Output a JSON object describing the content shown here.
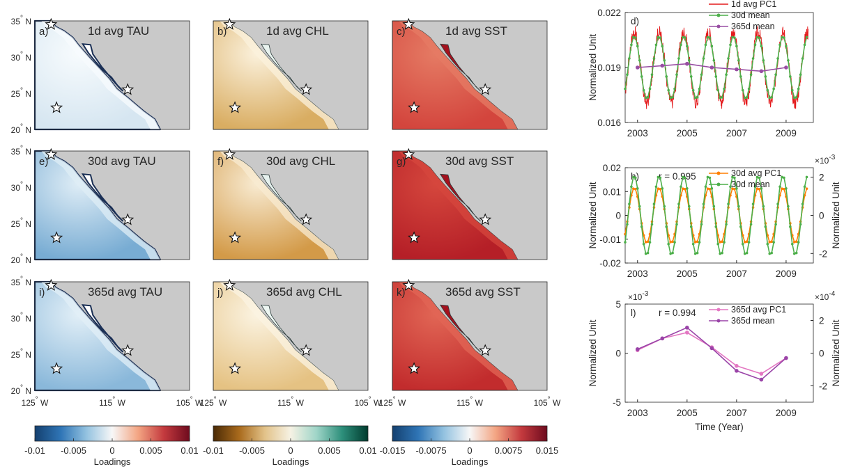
{
  "maps": {
    "lat_ticks": [
      "35° N",
      "30° N",
      "25° N",
      "20° N"
    ],
    "lon_ticks": [
      "125° W",
      "115° W",
      "105° W"
    ],
    "panels": [
      {
        "letter": "a)",
        "title": "1d avg TAU",
        "variable": "TAU",
        "offshore": "#d6e6f1",
        "coast": "#f7fbfd",
        "baja": "#ffffff"
      },
      {
        "letter": "b)",
        "title": "1d avg CHL",
        "variable": "CHL",
        "offshore": "#d9ad62",
        "coast": "#fbf1dc",
        "baja": "#e9f3ef"
      },
      {
        "letter": "c)",
        "title": "1d avg SST",
        "variable": "SST",
        "offshore": "#d3453d",
        "coast": "#e57b64",
        "baja": "#a3121e"
      },
      {
        "letter": "e)",
        "title": "30d avg TAU",
        "variable": "TAU",
        "offshore": "#78acd3",
        "coast": "#dfedf6",
        "baja": "#ffffff"
      },
      {
        "letter": "f)",
        "title": "30d avg CHL",
        "variable": "CHL",
        "offshore": "#d39a48",
        "coast": "#f8ebd2",
        "baja": "#e6f1ee"
      },
      {
        "letter": "g)",
        "title": "30d avg SST",
        "variable": "SST",
        "offshore": "#b51f27",
        "coast": "#d5473d",
        "baja": "#a3121e"
      },
      {
        "letter": "i)",
        "title": "365d avg TAU",
        "variable": "TAU",
        "offshore": "#8ab8da",
        "coast": "#e2eff7",
        "baja": "#ffffff"
      },
      {
        "letter": "j)",
        "title": "365d avg CHL",
        "variable": "CHL",
        "offshore": "#e5c283",
        "coast": "#fbf3e1",
        "baja": "#edf6f2"
      },
      {
        "letter": "k)",
        "title": "365d avg SST",
        "variable": "SST",
        "offshore": "#c22c2d",
        "coast": "#e16655",
        "baja": "#a3121e"
      }
    ],
    "land_color": "#c9c9c9",
    "star_locations": [
      "34.5° N 122.9° W",
      "23° N 122.2° W",
      "25.5° N 113° W"
    ]
  },
  "colorbars": [
    {
      "label": "Loadings",
      "ticks": [
        "-0.01",
        "-0.005",
        "0",
        "0.005",
        "0.01"
      ],
      "colors": [
        "#14406f",
        "#2f75b6",
        "#93c2e0",
        "#f7f7f7",
        "#f3a583",
        "#c43a3e",
        "#6e0b1e"
      ]
    },
    {
      "label": "Loadings",
      "ticks": [
        "-0.01",
        "-0.005",
        "0",
        "0.005",
        "0.01"
      ],
      "colors": [
        "#4a2a06",
        "#a96a1c",
        "#e2c289",
        "#f6f2e4",
        "#9fd5c8",
        "#2d8f7b",
        "#003b2e"
      ]
    },
    {
      "label": "Loadings",
      "ticks": [
        "-0.015",
        "-0.0075",
        "0",
        "0.0075",
        "0.015"
      ],
      "colors": [
        "#14406f",
        "#2f75b6",
        "#93c2e0",
        "#f7f7f7",
        "#f3a583",
        "#c43a3e",
        "#6e0b1e"
      ]
    }
  ],
  "colors": {
    "red": "#e41a1c",
    "green": "#4daf4a",
    "purple": "#984ea3",
    "orange": "#ff7f00",
    "pink": "#e377c2",
    "dpurple": "#9a44a8"
  },
  "chart_data": [
    {
      "type": "line",
      "letter": "d)",
      "xlim": [
        2002.5,
        2010.1
      ],
      "ylim": [
        0.016,
        0.022
      ],
      "yticks": [
        "0.022",
        "0.019",
        "0.016"
      ],
      "xticks": [
        "2003",
        "2005",
        "2007",
        "2009"
      ],
      "ylabel": "Normalized Unit",
      "legend": "top-right",
      "series": [
        {
          "name": "1d avg PC1",
          "color": "#e41a1c",
          "period": 1,
          "mean": 0.019,
          "amp": 0.0019,
          "noise": 0.0005,
          "phase": 0.62
        },
        {
          "name": "30d mean",
          "color": "#4daf4a",
          "period": 1,
          "mean": 0.019,
          "amp": 0.0017,
          "noise": 0.0,
          "phase": 0.62
        },
        {
          "name": "365d mean",
          "x": [
            2003,
            2004,
            2005,
            2006,
            2007,
            2008,
            2009
          ],
          "y": [
            0.019,
            0.0191,
            0.0192,
            0.019,
            0.0189,
            0.0188,
            0.019
          ]
        }
      ]
    },
    {
      "type": "line",
      "letter": "h)",
      "annotation": "r = 0.995",
      "xlim": [
        2002.5,
        2010.1
      ],
      "ylim": [
        -0.02,
        0.02
      ],
      "yticks": [
        "0.02",
        "0.01",
        "0",
        "-0.01",
        "-0.02"
      ],
      "y2lim": [
        -2.5,
        2.5
      ],
      "y2ticks": [
        "2",
        "0",
        "-2"
      ],
      "y2exponent": "×10",
      "y2exp_power": "-3",
      "xticks": [
        "2003",
        "2005",
        "2007",
        "2009"
      ],
      "ylabel": "Normalized Unit",
      "y2label": "Normalized Unit",
      "legend": "top-right",
      "series": [
        {
          "name": "30d avg PC1",
          "color": "#ff7f00",
          "amp": 0.0115,
          "phase": 0.62
        },
        {
          "name": "30d mean",
          "color": "#4daf4a",
          "amp": 0.0165,
          "phase": 0.62
        }
      ]
    },
    {
      "type": "line",
      "letter": "l)",
      "annotation": "r = 0.994",
      "xlim": [
        2002.5,
        2010.1
      ],
      "ylim": [
        -5,
        5
      ],
      "yticks": [
        "5",
        "0",
        "-5"
      ],
      "yexponent": "×10",
      "yexp_power": "-3",
      "y2lim": [
        -3,
        3
      ],
      "y2ticks": [
        "2",
        "0",
        "-2"
      ],
      "y2exponent": "×10",
      "y2exp_power": "-4",
      "xticks": [
        "2003",
        "2005",
        "2007",
        "2009"
      ],
      "xlabel": "Time (Year)",
      "ylabel": "Normalized Unit",
      "y2label": "Normalized Unit",
      "legend": "top-right",
      "series": [
        {
          "name": "365d avg PC1",
          "color": "#e377c2",
          "x": [
            2003,
            2004,
            2005,
            2006,
            2007,
            2008,
            2009
          ],
          "y": [
            0.3,
            1.5,
            2.1,
            0.6,
            -1.3,
            -2.1,
            -0.5
          ]
        },
        {
          "name": "365d mean",
          "color": "#9a44a8",
          "x": [
            2003,
            2004,
            2005,
            2006,
            2007,
            2008,
            2009
          ],
          "y": [
            0.4,
            1.5,
            2.6,
            0.5,
            -1.8,
            -2.7,
            -0.5
          ]
        }
      ]
    }
  ],
  "labels": {
    "d_letter": "d)",
    "h_letter": "h)",
    "l_letter": "l)"
  }
}
